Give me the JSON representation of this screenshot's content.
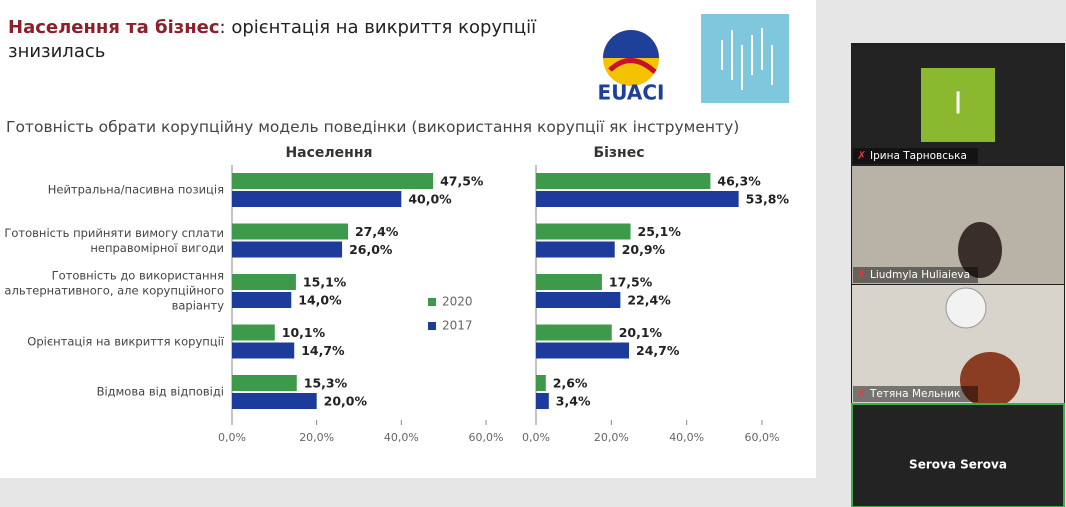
{
  "slide": {
    "title_bold": "Населення та бізнес",
    "title_rest": ": орієнтація на викриття корупції знизилась",
    "logo": "EUACI",
    "subtitle": "Готовність обрати корупційну модель поведінки (використання корупції як інструменту)"
  },
  "participants": {
    "initial": "I",
    "names": [
      "Ірина Тарновська",
      "Liudmyla Huliaieva",
      "Тетяна Мельник",
      "Serova Serova"
    ]
  },
  "chart_data": [
    {
      "type": "bar",
      "orientation": "horizontal",
      "title": "Населення",
      "categories": [
        "Нейтральна/пасивна позиція",
        "Готовність прийняти вимогу сплати неправомірної вигоди",
        "Готовність до використання альтернативного, але корупційного варіанту",
        "Орієнтація на викриття корупції",
        "Відмова від відповіді"
      ],
      "series": [
        {
          "name": "2020",
          "color": "#3d9a4b",
          "values": [
            47.5,
            27.4,
            15.1,
            10.1,
            15.3
          ],
          "value_labels": [
            "47,5%",
            "27,4%",
            "15,1%",
            "10,1%",
            "15,3%"
          ]
        },
        {
          "name": "2017",
          "color": "#1d3b9a",
          "values": [
            40.0,
            26.0,
            14.0,
            14.7,
            20.0
          ],
          "value_labels": [
            "40,0%",
            "26,0%",
            "14,0%",
            "14,7%",
            "20,0%"
          ]
        }
      ],
      "xlim": [
        0,
        60
      ],
      "xticks": [
        {
          "value": 0,
          "label": "0,0%"
        },
        {
          "value": 20,
          "label": "20,0%"
        },
        {
          "value": 40,
          "label": "40,0%"
        },
        {
          "value": 60,
          "label": "60,0%"
        }
      ],
      "legend": "right"
    },
    {
      "type": "bar",
      "orientation": "horizontal",
      "title": "Бізнес",
      "categories": [
        null,
        null,
        null,
        null,
        null
      ],
      "series": [
        {
          "color": "#3d9a4b",
          "values": [
            46.3,
            25.1,
            17.5,
            20.1,
            2.6
          ],
          "value_labels": [
            "46,3%",
            "25,1%",
            "17,5%",
            "20,1%",
            "2,6%"
          ]
        },
        {
          "color": "#1d3b9a",
          "values": [
            53.8,
            20.9,
            22.4,
            24.7,
            3.4
          ],
          "value_labels": [
            "53,8%",
            "20,9%",
            "22,4%",
            "24,7%",
            "3,4%"
          ]
        }
      ],
      "xlim": [
        0,
        60
      ],
      "xticks": [
        {
          "value": 0,
          "label": "0,0%"
        },
        {
          "value": 20,
          "label": "20,0%"
        },
        {
          "value": 40,
          "label": "40,0%"
        },
        {
          "value": 60,
          "label": "60,0%"
        }
      ]
    }
  ]
}
